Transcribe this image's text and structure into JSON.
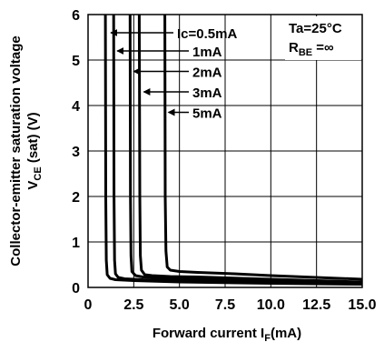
{
  "chart_data": {
    "type": "line",
    "title": "",
    "xlabel": "Forward current I",
    "xlabel_sub": "F",
    "xlabel_unit": "(mA)",
    "ylabel_line1": "Collector-emitter saturation voltage",
    "ylabel_line2_main": "V",
    "ylabel_line2_sub": "CE",
    "ylabel_line2_rest": " (sat) (V)",
    "xlim": [
      0,
      15
    ],
    "ylim": [
      0,
      6
    ],
    "x_ticks": [
      "0",
      "2.5",
      "5.0",
      "7.5",
      "10.0",
      "12.5",
      "15.0"
    ],
    "x_tick_values": [
      0,
      2.5,
      5,
      7.5,
      10,
      12.5,
      15
    ],
    "y_ticks": [
      "0",
      "1",
      "2",
      "3",
      "4",
      "5",
      "6"
    ],
    "y_tick_values": [
      0,
      1,
      2,
      3,
      4,
      5,
      6
    ],
    "grid": true,
    "conditions": {
      "ta_prefix": "Ta=25",
      "ta_unit": "°C",
      "rbe_main": "R",
      "rbe_sub": "BE",
      "rbe_value": " =∞"
    },
    "series": [
      {
        "name": "Ic=0.5mA",
        "x": [
          0.95,
          0.97,
          1.0,
          1.05,
          1.2,
          1.5,
          2.5,
          5,
          10,
          15
        ],
        "y": [
          6,
          2,
          0.6,
          0.28,
          0.2,
          0.17,
          0.15,
          0.12,
          0.09,
          0.07
        ],
        "label_at": [
          1.15,
          5.6
        ]
      },
      {
        "name": "1mA",
        "x": [
          1.4,
          1.42,
          1.45,
          1.5,
          1.65,
          2.0,
          3.0,
          5,
          10,
          15
        ],
        "y": [
          6,
          2,
          0.6,
          0.3,
          0.22,
          0.19,
          0.17,
          0.15,
          0.11,
          0.08
        ],
        "label_at": [
          1.5,
          5.2
        ]
      },
      {
        "name": "2mA",
        "x": [
          2.3,
          2.32,
          2.35,
          2.4,
          2.6,
          3.0,
          4.0,
          5,
          10,
          15
        ],
        "y": [
          6,
          2,
          0.7,
          0.35,
          0.26,
          0.23,
          0.21,
          0.2,
          0.15,
          0.1
        ],
        "label_at": [
          2.4,
          4.75
        ]
      },
      {
        "name": "3mA",
        "x": [
          2.8,
          2.83,
          2.86,
          2.92,
          3.1,
          3.5,
          4.5,
          6,
          10,
          15
        ],
        "y": [
          6,
          2,
          0.7,
          0.38,
          0.28,
          0.26,
          0.24,
          0.23,
          0.18,
          0.12
        ],
        "label_at": [
          2.95,
          4.3
        ]
      },
      {
        "name": "5mA",
        "x": [
          4.2,
          4.22,
          4.26,
          4.33,
          4.5,
          5.0,
          6.0,
          8,
          10,
          15
        ],
        "y": [
          6,
          2,
          0.8,
          0.45,
          0.38,
          0.35,
          0.33,
          0.3,
          0.26,
          0.18
        ],
        "label_at": [
          4.3,
          3.85
        ]
      }
    ]
  }
}
